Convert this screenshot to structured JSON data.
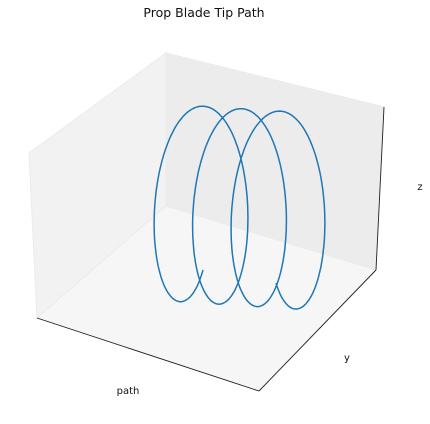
{
  "chart_data": {
    "type": "line",
    "projection": "3d",
    "title": "Prop Blade Tip Path",
    "xlabel": "path",
    "ylabel": "y",
    "zlabel": "z",
    "ticks": "hidden",
    "grid": false,
    "series": [
      {
        "color": "#1f77b4",
        "curve": "helix",
        "turns": 3.25,
        "radius": 1,
        "x_range": [
          0,
          1
        ]
      }
    ]
  }
}
